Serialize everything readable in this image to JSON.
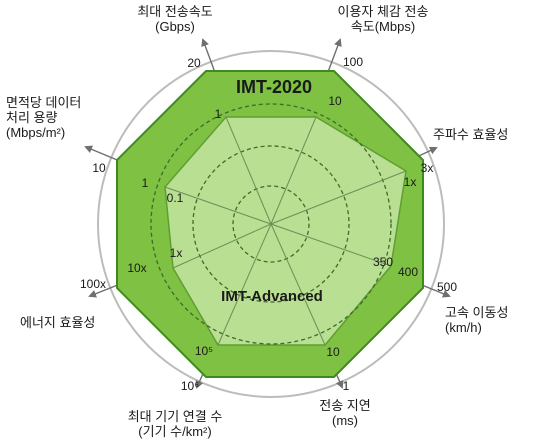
{
  "colors": {
    "background": "#ffffff",
    "outer_ring": "#bcbcbc",
    "imt2020_fill": "#7ec143",
    "imt2020_stroke": "#3f8a1e",
    "imt_advanced_fill": "#b9df93",
    "imt_advanced_stroke": "#5f9e33",
    "axis": "#6f6f6f",
    "dashed_circle": "#3f6b2b",
    "text": "#1a1a1a"
  },
  "titles": {
    "imt2020": "IMT-2020",
    "imt_advanced": "IMT-Advanced"
  },
  "axes": [
    {
      "id": "peak-rate",
      "label_lines": [
        "최대 전송속도",
        "(Gbps)"
      ],
      "imt2020_value": "20",
      "imt_advanced_value": "1"
    },
    {
      "id": "user-rate",
      "label_lines": [
        "이용자 체감 전송",
        "속도(Mbps)"
      ],
      "imt2020_value": "100",
      "imt_advanced_value": "10"
    },
    {
      "id": "spectral-efficiency",
      "label_lines": [
        "주파수 효율성"
      ],
      "imt2020_value": "3x",
      "imt_advanced_value": "1x"
    },
    {
      "id": "mobility",
      "label_lines": [
        "고속 이동성",
        "(km/h)"
      ],
      "imt2020_value": "500",
      "imt_advanced_value": "350",
      "mid_value": "400"
    },
    {
      "id": "latency",
      "label_lines": [
        "전송 지연",
        "(ms)"
      ],
      "imt2020_value": "1",
      "imt_advanced_value": "10"
    },
    {
      "id": "connection-density",
      "label_lines": [
        "최대 기기 연결 수",
        "(기기 수/km²)"
      ],
      "imt2020_value": "10⁶",
      "imt_advanced_value": "10⁵"
    },
    {
      "id": "energy-efficiency",
      "label_lines": [
        "에너지 효율성"
      ],
      "imt2020_value": "100x",
      "imt_advanced_value": "10x",
      "inner_value": "1x"
    },
    {
      "id": "area-traffic",
      "label_lines": [
        "면적당 데이터",
        "처리 용량",
        "(Mbps/m²)"
      ],
      "imt2020_value": "10",
      "imt_advanced_value": "1",
      "inner_value": "0.1"
    }
  ]
}
